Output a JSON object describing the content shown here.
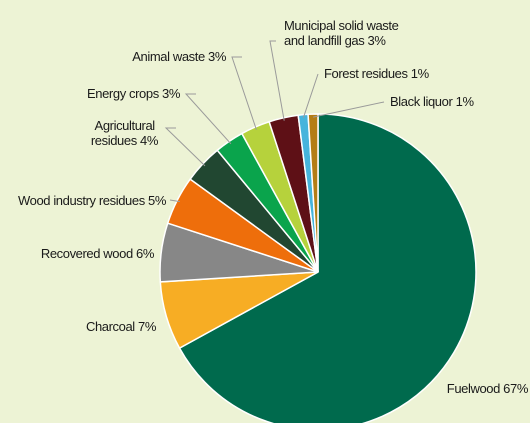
{
  "chart_data": {
    "type": "pie",
    "title": "",
    "slices": [
      {
        "name": "Fuelwood",
        "value": 67,
        "label": "Fuelwood 67%",
        "color": "#006a4d"
      },
      {
        "name": "Charcoal",
        "value": 7,
        "label": "Charcoal 7%",
        "color": "#f7ad24"
      },
      {
        "name": "Recovered wood",
        "value": 6,
        "label": "Recovered wood 6%",
        "color": "#878787"
      },
      {
        "name": "Wood industry residues",
        "value": 5,
        "label": "Wood industry residues 5%",
        "color": "#ee6e0b"
      },
      {
        "name": "Agricultural residues",
        "value": 4,
        "label_lines": [
          "Agricultural",
          "residues 4%"
        ],
        "color": "#214731"
      },
      {
        "name": "Energy crops",
        "value": 3,
        "label": "Energy crops 3%",
        "color": "#0aa44c"
      },
      {
        "name": "Animal waste",
        "value": 3,
        "label": "Animal waste 3%",
        "color": "#b6d23c"
      },
      {
        "name": "Municipal solid waste and landfill gas",
        "value": 3,
        "label_lines": [
          "Municipal solid waste",
          "and landfill gas 3%"
        ],
        "color": "#5e1016"
      },
      {
        "name": "Forest residues",
        "value": 1,
        "label": "Forest residues 1%",
        "color": "#46b4dc"
      },
      {
        "name": "Black liquor",
        "value": 1,
        "label": "Black liquor 1%",
        "color": "#b47d15"
      }
    ],
    "start": "12 o'clock",
    "direction": "clockwise",
    "legend": "none (direct labels)"
  }
}
